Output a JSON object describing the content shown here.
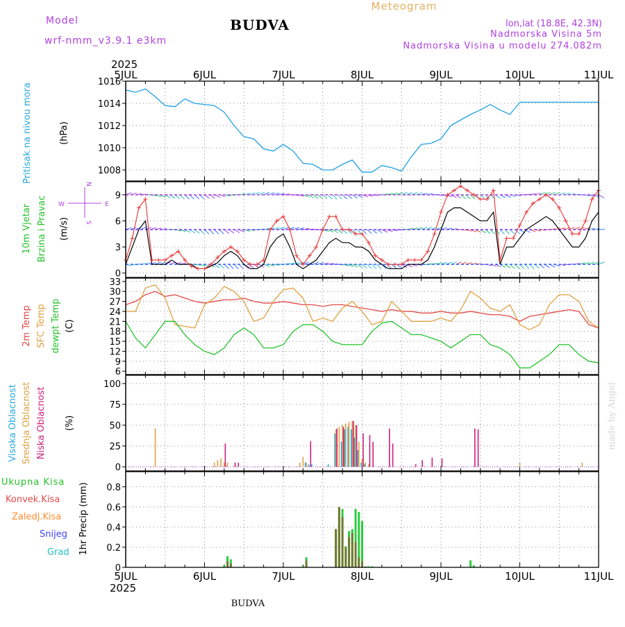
{
  "header": {
    "model_label": "Model",
    "model_name": "wrf-nmm_v3.9.1 e3km",
    "station": "BUDVA",
    "chart_type": "Meteogram",
    "lonlat": "lon,lat (18.8E, 42.3N)",
    "altitude": "Nadmorska Visina 5m",
    "model_altitude": "Nadmorska Visina u modelu 274.082m"
  },
  "footer": {
    "station": "BUDVA",
    "watermark": "made by Angel"
  },
  "time_axis": {
    "year": "2025",
    "labels": [
      "5JUL",
      "6JUL",
      "7JUL",
      "8JUL",
      "9JUL",
      "10JUL",
      "11JUL"
    ],
    "range_hours": [
      0,
      144
    ]
  },
  "colors": {
    "pressure": "#1ea0e6",
    "temp2m": "#e24848",
    "sfc": "#e0a040",
    "dewpt": "#22c22a",
    "high_cloud": "#2aa8e0",
    "mid_cloud": "#e0a040",
    "low_cloud": "#cc1f7a",
    "precip_total": "#2ecc40",
    "precip_conv": "#e84848",
    "precip_frozen": "#ff8c30",
    "snow": "#4040ff",
    "hail": "#20c0c0",
    "wind_gust": "#e84040",
    "wind_speed": "#000000",
    "vane": "#b040e0"
  },
  "chart_data": [
    {
      "type": "line",
      "id": "pressure",
      "ylabel_title": "Pritisak na nivou mora",
      "ylabel_unit": "(hPa)",
      "ylim": [
        1007,
        1016
      ],
      "yticks": [
        1008,
        1010,
        1012,
        1014,
        1016
      ],
      "grid": true,
      "series": [
        {
          "name": "Pressure",
          "x": [
            0,
            3,
            6,
            9,
            12,
            15,
            18,
            21,
            24,
            27,
            30,
            33,
            36,
            39,
            42,
            45,
            48,
            51,
            54,
            57,
            60,
            63,
            66,
            69,
            72,
            75,
            78,
            81,
            84,
            87,
            90,
            93,
            96,
            99,
            102,
            105,
            108,
            111,
            114,
            117,
            120,
            123,
            126,
            129,
            132,
            135,
            138,
            141,
            144
          ],
          "values": [
            1015.2,
            1015.0,
            1015.3,
            1014.6,
            1013.8,
            1013.7,
            1014.4,
            1014.0,
            1013.9,
            1013.8,
            1013.2,
            1012.0,
            1011.0,
            1010.8,
            1009.9,
            1009.7,
            1010.3,
            1009.7,
            1008.6,
            1008.5,
            1008.0,
            1008.0,
            1008.5,
            1008.9,
            1007.8,
            1007.8,
            1008.4,
            1008.2,
            1007.9,
            1009.2,
            1010.3,
            1010.4,
            1010.8,
            1012.0,
            1012.5,
            1013.0,
            1013.4,
            1013.9,
            1013.4,
            1013.0,
            1014.1,
            1014.1,
            1014.1,
            1014.1,
            1014.1,
            1014.1,
            1014.1,
            1014.1,
            1014.1
          ]
        }
      ]
    },
    {
      "type": "line",
      "id": "wind",
      "ylabel_title": "10m Vjetar",
      "ylabel_title2": "Brzina i Pravac",
      "ylabel_unit": "(m/s)",
      "compass": {
        "n": "N",
        "s": "S",
        "e": "E",
        "w": "W"
      },
      "ylim": [
        -0.5,
        10.5
      ],
      "yticks": [
        0,
        3,
        6,
        9
      ],
      "grid": true,
      "vane_levels": [
        1,
        5,
        9
      ],
      "series": [
        {
          "name": "Wind speed",
          "x": [
            0,
            2,
            4,
            6,
            8,
            10,
            12,
            14,
            16,
            18,
            20,
            22,
            24,
            26,
            28,
            30,
            32,
            34,
            36,
            38,
            40,
            42,
            44,
            46,
            48,
            50,
            52,
            54,
            56,
            58,
            60,
            62,
            64,
            66,
            68,
            70,
            72,
            74,
            76,
            78,
            80,
            82,
            84,
            86,
            88,
            90,
            92,
            94,
            96,
            98,
            100,
            102,
            104,
            106,
            108,
            110,
            112,
            114,
            116,
            118,
            120,
            122,
            124,
            126,
            128,
            130,
            132,
            134,
            136,
            138,
            140,
            142,
            144
          ],
          "values": [
            1,
            3,
            5,
            6,
            1,
            1,
            1,
            1.5,
            1,
            1,
            1,
            0.5,
            0.5,
            0.8,
            1.2,
            2,
            2.5,
            2,
            1,
            0.5,
            0.5,
            1,
            3,
            4,
            4.5,
            3,
            1,
            0.5,
            1,
            1.5,
            2.5,
            3.5,
            4,
            3.5,
            3.5,
            3,
            3,
            2.5,
            1.5,
            1,
            0.5,
            0.5,
            0.5,
            1,
            1,
            1,
            1.5,
            3,
            5,
            7,
            7.5,
            7.5,
            7,
            6.5,
            6,
            6,
            7,
            1,
            3,
            3,
            4,
            5,
            5.5,
            6,
            6.5,
            6,
            5,
            4,
            3,
            3,
            4,
            6,
            7
          ]
        },
        {
          "name": "Wind gust",
          "x": [
            0,
            2,
            4,
            6,
            8,
            10,
            12,
            14,
            16,
            18,
            20,
            22,
            24,
            26,
            28,
            30,
            32,
            34,
            36,
            38,
            40,
            42,
            44,
            46,
            48,
            50,
            52,
            54,
            56,
            58,
            60,
            62,
            64,
            66,
            68,
            70,
            72,
            74,
            76,
            78,
            80,
            82,
            84,
            86,
            88,
            90,
            92,
            94,
            96,
            98,
            100,
            102,
            104,
            106,
            108,
            110,
            112,
            114,
            116,
            118,
            120,
            122,
            124,
            126,
            128,
            130,
            132,
            134,
            136,
            138,
            140,
            142,
            144
          ],
          "values": [
            1.5,
            4,
            7.5,
            8.5,
            1.5,
            1.5,
            1.5,
            2,
            2.5,
            1.5,
            0.8,
            0.5,
            0.5,
            1,
            1.8,
            2.5,
            3,
            2.5,
            1.5,
            1,
            1,
            1.5,
            5,
            6,
            6.5,
            5,
            2,
            1,
            2,
            3,
            5,
            6.5,
            6.5,
            5,
            5,
            4.5,
            4.5,
            3.5,
            2,
            1.5,
            1,
            1,
            1,
            1.5,
            1.5,
            1.5,
            2.5,
            4.5,
            7,
            9,
            9.5,
            10,
            9.5,
            9,
            8.5,
            8.5,
            9.5,
            1.5,
            4,
            4,
            5.5,
            7,
            8,
            8.5,
            9,
            8.5,
            7.5,
            6,
            4.5,
            4.5,
            6,
            8.5,
            9.5
          ]
        }
      ]
    },
    {
      "type": "line",
      "id": "temperature",
      "ylabel_titles": [
        "2m Temp",
        "SFC Temp",
        "dewpt Temp"
      ],
      "ylabel_unit": "(C)",
      "ylim": [
        5,
        34
      ],
      "yticks": [
        6,
        9,
        12,
        15,
        18,
        21,
        24,
        27,
        30,
        33
      ],
      "grid": true,
      "series": [
        {
          "name": "2m Temp",
          "x": [
            0,
            3,
            6,
            9,
            12,
            15,
            18,
            21,
            24,
            27,
            30,
            33,
            36,
            39,
            42,
            45,
            48,
            51,
            54,
            57,
            60,
            63,
            66,
            69,
            72,
            75,
            78,
            81,
            84,
            87,
            90,
            93,
            96,
            99,
            102,
            105,
            108,
            111,
            114,
            117,
            120,
            123,
            126,
            129,
            132,
            135,
            138,
            141,
            144
          ],
          "values": [
            26,
            27,
            29,
            30,
            28.5,
            29,
            28,
            27,
            26.5,
            27,
            27.5,
            27.5,
            28,
            27,
            26.5,
            26.5,
            27,
            26.5,
            26,
            26,
            25.5,
            26,
            26,
            25.5,
            25,
            24.5,
            24,
            24.5,
            24,
            24,
            23.5,
            23.5,
            24,
            23.5,
            23.5,
            24,
            23.5,
            23,
            23,
            22.5,
            21,
            22.5,
            23,
            23.5,
            24,
            24.5,
            24,
            20,
            19
          ]
        },
        {
          "name": "SFC Temp",
          "x": [
            0,
            3,
            6,
            9,
            12,
            15,
            18,
            21,
            24,
            27,
            30,
            33,
            36,
            39,
            42,
            45,
            48,
            51,
            54,
            57,
            60,
            63,
            66,
            69,
            72,
            75,
            78,
            81,
            84,
            87,
            90,
            93,
            96,
            99,
            102,
            105,
            108,
            111,
            114,
            117,
            120,
            123,
            126,
            129,
            132,
            135,
            138,
            141,
            144
          ],
          "values": [
            24,
            24,
            31,
            32,
            28,
            20,
            19.5,
            19,
            26,
            28,
            31.5,
            30,
            27,
            21,
            22,
            27,
            30.5,
            31,
            28,
            21,
            22,
            21,
            25,
            27,
            24,
            20,
            21,
            27,
            24,
            21,
            21,
            21,
            22,
            21,
            24.5,
            30,
            28,
            25,
            24,
            26,
            20,
            18.5,
            20,
            26,
            29,
            29,
            27,
            21,
            19
          ]
        },
        {
          "name": "dewpt Temp",
          "x": [
            0,
            3,
            6,
            9,
            12,
            15,
            18,
            21,
            24,
            27,
            30,
            33,
            36,
            39,
            42,
            45,
            48,
            51,
            54,
            57,
            60,
            63,
            66,
            69,
            72,
            75,
            78,
            81,
            84,
            87,
            90,
            93,
            96,
            99,
            102,
            105,
            108,
            111,
            114,
            117,
            120,
            123,
            126,
            129,
            132,
            135,
            138,
            141,
            144
          ],
          "values": [
            21,
            16,
            13,
            17,
            21,
            21,
            17,
            14,
            12,
            11,
            13,
            17,
            19,
            17,
            13,
            13,
            14,
            18,
            20,
            20,
            18,
            15,
            14,
            14,
            14,
            18,
            20.5,
            21,
            19,
            17,
            17,
            16,
            15,
            13,
            15,
            17,
            17,
            14,
            13,
            11,
            7,
            7,
            9,
            11,
            14,
            14,
            11,
            9,
            8.5
          ]
        }
      ]
    },
    {
      "type": "bar",
      "id": "cloud",
      "ylabel_titles": [
        "Visoka Oblacnost",
        "Srednja Oblacnost",
        "Niska Oblacnost"
      ],
      "ylabel_unit": "(%)",
      "ylim": [
        -5,
        110
      ],
      "yticks": [
        0,
        25,
        50,
        75,
        100
      ],
      "grid": true,
      "series": [
        {
          "name": "Visoka Oblacnost",
          "x": [
            55,
            56,
            57,
            62,
            64,
            66,
            67,
            68,
            69,
            70,
            71,
            72,
            73
          ],
          "values": [
            5,
            3,
            3,
            3,
            40,
            30,
            45,
            48,
            45,
            35,
            20,
            5,
            3
          ]
        },
        {
          "name": "Srednja Oblacnost",
          "x": [
            9,
            27,
            28,
            29,
            30,
            31,
            53,
            54,
            55,
            64,
            65,
            66,
            67,
            68,
            69,
            70,
            71,
            72,
            73,
            74,
            120,
            139
          ],
          "values": [
            46,
            5,
            8,
            10,
            5,
            5,
            5,
            12,
            5,
            45,
            48,
            50,
            52,
            54,
            55,
            50,
            30,
            10,
            5,
            3,
            5,
            5
          ]
        },
        {
          "name": "Niska Oblacnost",
          "x": [
            30,
            33,
            34,
            56,
            64,
            66,
            69,
            70,
            72,
            74,
            75,
            80,
            81,
            88,
            90,
            93,
            96,
            106,
            107
          ],
          "values": [
            28,
            5,
            5,
            31,
            46,
            48,
            55,
            50,
            40,
            38,
            30,
            46,
            28,
            3,
            8,
            11,
            10,
            46,
            45
          ]
        }
      ]
    },
    {
      "type": "bar",
      "id": "precip",
      "ylabel_unit": "1hr Precip (mm)",
      "ylim": [
        0,
        0.95
      ],
      "yticks": [
        0,
        0.2,
        0.4,
        0.6,
        0.8
      ],
      "grid": true,
      "legend": [
        "Ukupna Kisa",
        "Konvek.Kisa",
        "Zaledj.Kisa",
        "Snijeg",
        "Grad"
      ],
      "series": [
        {
          "name": "Ukupna Kisa",
          "x": [
            30,
            31,
            32,
            54,
            55,
            64,
            65,
            66,
            67,
            68,
            69,
            70,
            71,
            72,
            73,
            74,
            75,
            105,
            106
          ],
          "values": [
            0.02,
            0.11,
            0.08,
            0.01,
            0.1,
            0.38,
            0.59,
            0.58,
            0.21,
            0.36,
            0.38,
            0.58,
            0.55,
            0.46,
            0.01,
            0.01,
            0.01,
            0.07,
            0.02
          ]
        },
        {
          "name": "Konvek.Kisa",
          "x": [
            31,
            32,
            55,
            64,
            65,
            66,
            67,
            68,
            69,
            70,
            71,
            72
          ],
          "values": [
            0.06,
            0.04,
            0.07,
            0.38,
            0.6,
            0.5,
            0.2,
            0.3,
            0.34,
            0.25,
            0.1,
            0.06
          ]
        }
      ]
    }
  ]
}
